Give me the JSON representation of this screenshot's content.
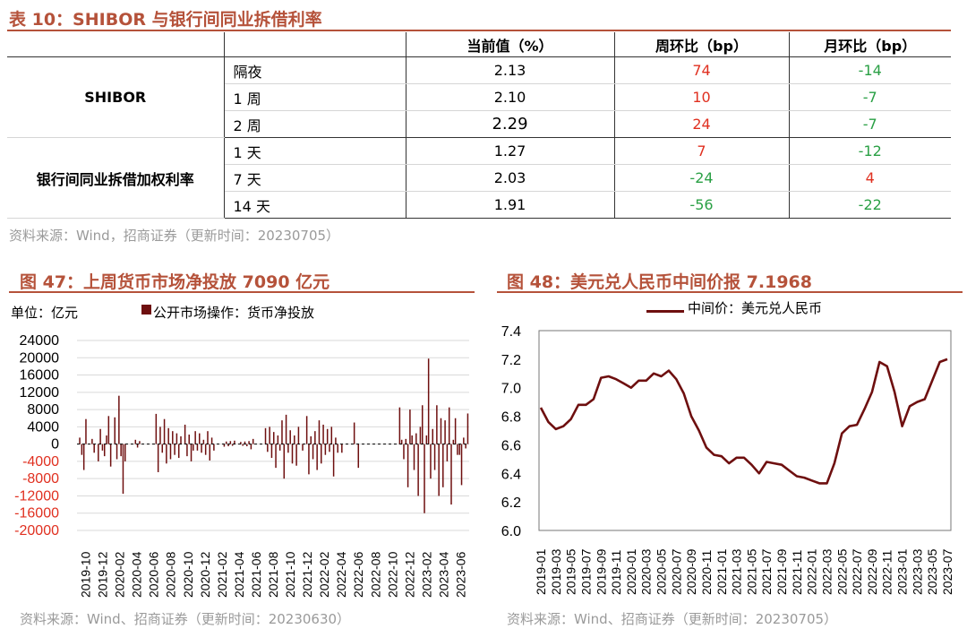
{
  "table": {
    "title": "表 10：SHIBOR 与银行间同业拆借利率",
    "headers": [
      "",
      "",
      "当前值（%）",
      "周环比（bp）",
      "月环比（bp）"
    ],
    "groups": [
      {
        "name": "SHIBOR",
        "rows": [
          {
            "tenor": "隔夜",
            "value": "2.13",
            "wow": "74",
            "mom": "-14"
          },
          {
            "tenor": "1 周",
            "value": "2.10",
            "wow": "10",
            "mom": "-7"
          },
          {
            "tenor": "2 周",
            "value": "2.29",
            "wow": "24",
            "mom": "-7"
          }
        ]
      },
      {
        "name": "银行间同业拆借加权利率",
        "rows": [
          {
            "tenor": "1 天",
            "value": "1.27",
            "wow": "7",
            "mom": "-12"
          },
          {
            "tenor": "7 天",
            "value": "2.03",
            "wow": "-24",
            "mom": "4"
          },
          {
            "tenor": "14 天",
            "value": "1.91",
            "wow": "-56",
            "mom": "-22"
          }
        ]
      }
    ],
    "source": "资料来源：Wind，招商证券（更新时间：20230705）"
  },
  "colors": {
    "accent": "#b5523a",
    "bar": "#6e0f0f",
    "up": "#e03020",
    "down": "#2aa045"
  },
  "chart_data": [
    {
      "type": "bar",
      "title": "图 47：上周货币市场净投放 7090 亿元",
      "unit_label": "单位：亿元",
      "legend": "公开市场操作：货币净投放",
      "ylim": [
        -20000,
        24000
      ],
      "yticks": [
        -20000,
        -16000,
        -12000,
        -8000,
        -4000,
        0,
        4000,
        8000,
        12000,
        16000,
        20000,
        24000
      ],
      "x_ticks": [
        "2019-10",
        "2019-12",
        "2020-02",
        "2020-04",
        "2020-06",
        "2020-08",
        "2020-10",
        "2020-12",
        "2021-02",
        "2021-04",
        "2021-06",
        "2021-08",
        "2021-10",
        "2021-12",
        "2022-02",
        "2022-04",
        "2022-06",
        "2022-08",
        "2022-10",
        "2022-12",
        "2023-02",
        "2023-04",
        "2023-06"
      ],
      "x_start": "2019-10",
      "weekly_values": [
        0,
        1500,
        -2500,
        -6000,
        5800,
        0,
        0,
        1200,
        -2000,
        0,
        -4000,
        3500,
        -1500,
        -2800,
        2000,
        6500,
        -5200,
        0,
        6200,
        -3500,
        11200,
        -2800,
        -11500,
        -4000,
        0,
        0,
        0,
        0,
        1000,
        -800,
        700,
        0,
        0,
        0,
        0,
        0,
        0,
        0,
        7000,
        -6500,
        4000,
        -2000,
        5800,
        -4500,
        3700,
        -3500,
        3000,
        -2500,
        2500,
        -3200,
        1800,
        0,
        4500,
        -2800,
        2200,
        -4000,
        -1500,
        3000,
        -1500,
        2500,
        -2000,
        1000,
        -2500,
        3000,
        -3800,
        1500,
        -1500,
        0,
        0,
        0,
        0,
        -600,
        600,
        -500,
        700,
        -400,
        800,
        0,
        0,
        500,
        -400,
        600,
        -500,
        700,
        -1200,
        1200,
        0,
        0,
        0,
        0,
        0,
        3700,
        -1800,
        4000,
        -3200,
        2800,
        -5500,
        2000,
        -1500,
        5500,
        -8000,
        6800,
        -2000,
        3200,
        -4500,
        2000,
        -5000,
        4000,
        0,
        -1500,
        0,
        6500,
        -7000,
        1800,
        -3500,
        3000,
        -6000,
        5500,
        -4500,
        4500,
        -2500,
        3500,
        -1800,
        4000,
        -7500,
        1500,
        -2000,
        0,
        -2000,
        0,
        0,
        0,
        0,
        0,
        5000,
        0,
        -5500,
        0,
        0,
        0,
        0,
        0,
        0,
        0,
        0,
        0,
        0,
        0,
        0,
        0,
        0,
        0,
        0,
        0,
        0,
        0,
        8500,
        1000,
        -3500,
        1200,
        -10000,
        8000,
        2000,
        -6000,
        2500,
        -12000,
        4000,
        9000,
        -16000,
        2000,
        19800,
        -8000,
        3500,
        -6000,
        9000,
        -12000,
        6000,
        -10000,
        5500,
        -4000,
        8500,
        -14000,
        1000,
        6000,
        -2500,
        -2500,
        -9500,
        1500,
        -1000,
        7090
      ]
    },
    {
      "type": "line",
      "title": "图 48：美元兑人民币中间价报 7.1968",
      "legend": "中间价：美元兑人民币",
      "ylim": [
        6.0,
        7.4
      ],
      "yticks": [
        6.0,
        6.2,
        6.4,
        6.6,
        6.8,
        7.0,
        7.2,
        7.4
      ],
      "x_ticks": [
        "2019-01",
        "2019-03",
        "2019-05",
        "2019-07",
        "2019-09",
        "2019-11",
        "2020-01",
        "2020-03",
        "2020-05",
        "2020-07",
        "2020-09",
        "2020-11",
        "2021-01",
        "2021-03",
        "2021-05",
        "2021-07",
        "2021-09",
        "2021-11",
        "2022-01",
        "2022-03",
        "2022-05",
        "2022-07",
        "2022-09",
        "2022-11",
        "2023-01",
        "2023-03",
        "2023-05",
        "2023-07"
      ],
      "x_start": "2019-01",
      "series": [
        {
          "monthly_values": [
            6.86,
            6.76,
            6.71,
            6.73,
            6.78,
            6.88,
            6.88,
            6.92,
            7.07,
            7.08,
            7.06,
            7.03,
            7.0,
            7.05,
            7.05,
            7.1,
            7.08,
            7.12,
            7.06,
            6.96,
            6.8,
            6.7,
            6.58,
            6.53,
            6.52,
            6.47,
            6.51,
            6.51,
            6.46,
            6.4,
            6.48,
            6.47,
            6.46,
            6.42,
            6.38,
            6.37,
            6.35,
            6.33,
            6.33,
            6.47,
            6.68,
            6.73,
            6.74,
            6.85,
            6.97,
            7.18,
            7.15,
            6.97,
            6.73,
            6.87,
            6.9,
            6.92,
            7.05,
            7.18,
            7.2
          ]
        }
      ]
    }
  ],
  "footer": {
    "left_source": "资料来源：Wind、招商证券（更新时间：20230630）",
    "right_source": "资料来源：Wind、招商证券（更新时间：20230705）"
  }
}
